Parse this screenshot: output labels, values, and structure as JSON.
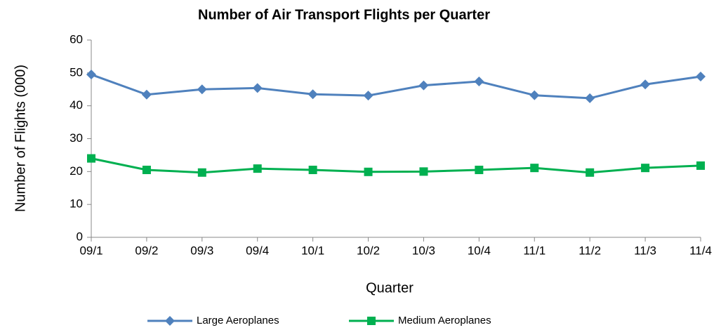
{
  "chart_data": {
    "type": "line",
    "title": "Number of Air Transport Flights per Quarter",
    "x_label": "Quarter",
    "y_label": "Number of Flights (000)",
    "categories": [
      "09/1",
      "09/2",
      "09/3",
      "09/4",
      "10/1",
      "10/2",
      "10/3",
      "10/4",
      "11/1",
      "11/2",
      "11/3",
      "11/4"
    ],
    "series": [
      {
        "name": "Large Aeroplanes",
        "color": "#4f81bd",
        "marker": "diamond",
        "values": [
          49.5,
          43.4,
          45.0,
          45.4,
          43.5,
          43.1,
          46.2,
          47.4,
          43.2,
          42.3,
          46.5,
          48.9
        ]
      },
      {
        "name": "Medium Aeroplanes",
        "color": "#00b050",
        "marker": "square",
        "values": [
          24.0,
          20.5,
          19.7,
          20.9,
          20.5,
          19.9,
          20.0,
          20.5,
          21.1,
          19.7,
          21.1,
          21.8
        ]
      }
    ],
    "ylim": [
      0,
      60
    ],
    "yticks": [
      0,
      10,
      20,
      30,
      40,
      50,
      60
    ],
    "grid": false,
    "legend": "bottom"
  }
}
